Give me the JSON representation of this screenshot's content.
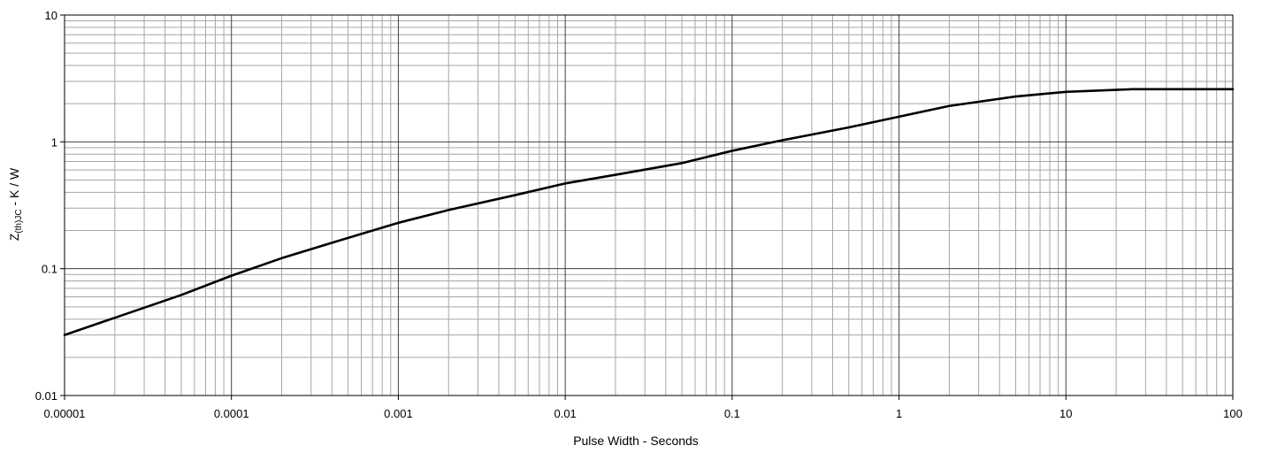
{
  "chart_data": {
    "type": "line",
    "title": "",
    "xlabel": "Pulse Width - Seconds",
    "ylabel": {
      "main": "Z",
      "subscript": "(th)JC",
      "suffix": " - K / W"
    },
    "x_scale": "log",
    "y_scale": "log",
    "xlim": [
      1e-05,
      100
    ],
    "ylim": [
      0.01,
      10
    ],
    "grid": true,
    "legend": "none",
    "x_ticks": [
      {
        "value": 1e-05,
        "label": "0.00001"
      },
      {
        "value": 0.0001,
        "label": "0.0001"
      },
      {
        "value": 0.001,
        "label": "0.001"
      },
      {
        "value": 0.01,
        "label": "0.01"
      },
      {
        "value": 0.1,
        "label": "0.1"
      },
      {
        "value": 1,
        "label": "1"
      },
      {
        "value": 10,
        "label": "10"
      },
      {
        "value": 100,
        "label": "100"
      }
    ],
    "y_ticks": [
      {
        "value": 0.01,
        "label": "0.01"
      },
      {
        "value": 0.1,
        "label": "0.1"
      },
      {
        "value": 1,
        "label": "1"
      },
      {
        "value": 10,
        "label": "10"
      }
    ],
    "series": [
      {
        "color": "#000000",
        "points": [
          [
            1e-05,
            0.03
          ],
          [
            2e-05,
            0.041
          ],
          [
            5e-05,
            0.062
          ],
          [
            0.0001,
            0.088
          ],
          [
            0.0002,
            0.121
          ],
          [
            0.0005,
            0.175
          ],
          [
            0.001,
            0.23
          ],
          [
            0.002,
            0.29
          ],
          [
            0.005,
            0.38
          ],
          [
            0.01,
            0.47
          ],
          [
            0.02,
            0.55
          ],
          [
            0.05,
            0.68
          ],
          [
            0.1,
            0.85
          ],
          [
            0.2,
            1.03
          ],
          [
            0.5,
            1.3
          ],
          [
            1,
            1.58
          ],
          [
            2,
            1.92
          ],
          [
            5,
            2.28
          ],
          [
            10,
            2.48
          ],
          [
            25,
            2.6
          ],
          [
            100,
            2.6
          ]
        ]
      }
    ]
  }
}
